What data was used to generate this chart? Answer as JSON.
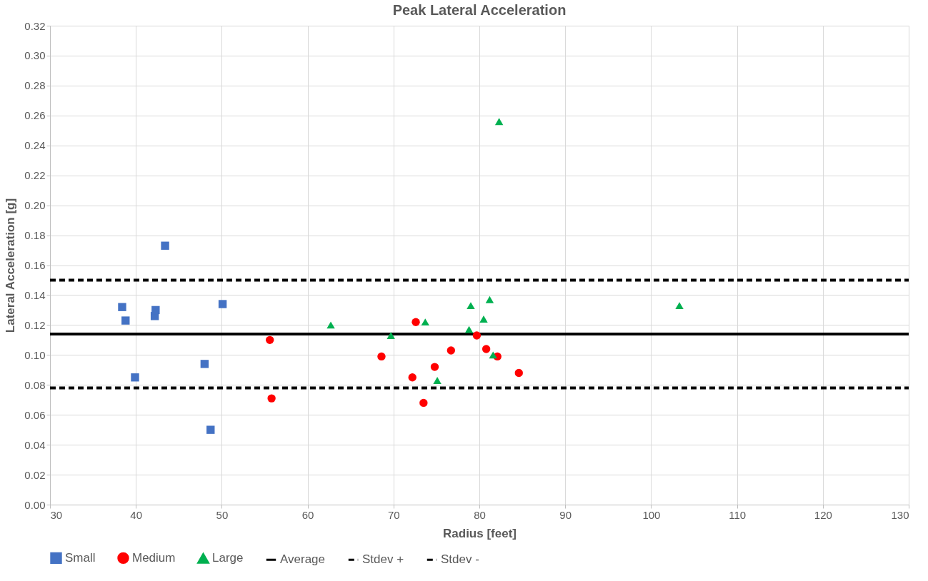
{
  "chart_data": {
    "type": "scatter",
    "title": "Peak Lateral Acceleration",
    "xlabel": "Radius [feet]",
    "ylabel": "Lateral Acceleration [g]",
    "xlim": [
      30,
      130
    ],
    "xticks": [
      30,
      40,
      50,
      60,
      70,
      80,
      90,
      100,
      110,
      120,
      130
    ],
    "ylim": [
      0,
      0.32
    ],
    "yticks": [
      {
        "value": 0,
        "label": "0.00"
      },
      {
        "value": 0.02,
        "label": "0.02"
      },
      {
        "value": 0.04,
        "label": "0.04"
      },
      {
        "value": 0.06,
        "label": "0.06"
      },
      {
        "value": 0.08,
        "label": "0.08"
      },
      {
        "value": 0.1,
        "label": "0.10"
      },
      {
        "value": 0.12,
        "label": "0.12"
      },
      {
        "value": 0.14,
        "label": "0.14"
      },
      {
        "value": 0.16,
        "label": "0.16"
      },
      {
        "value": 0.18,
        "label": "0.18"
      },
      {
        "value": 0.2,
        "label": "0.20"
      },
      {
        "value": 0.22,
        "label": "0.22"
      },
      {
        "value": 0.24,
        "label": "0.24"
      },
      {
        "value": 0.26,
        "label": "0.26"
      },
      {
        "value": 0.28,
        "label": "0.28"
      },
      {
        "value": 0.3,
        "label": "0.30"
      },
      {
        "value": 0.32,
        "label": "0.32"
      }
    ],
    "grid": true,
    "legend": "bottom",
    "series": [
      {
        "name": "Small",
        "marker": "square",
        "color": "#4472c4",
        "x": [
          38.4,
          38.8,
          39.9,
          42.2,
          42.3,
          43.4,
          48.0,
          48.7,
          50.1
        ],
        "values": [
          0.132,
          0.123,
          0.085,
          0.126,
          0.13,
          0.173,
          0.094,
          0.05,
          0.134
        ]
      },
      {
        "name": "Medium",
        "marker": "circle",
        "color": "#ff0000",
        "x": [
          55.6,
          55.8,
          68.6,
          72.2,
          72.6,
          73.5,
          74.8,
          76.7,
          79.7,
          80.8,
          82.1,
          84.6
        ],
        "values": [
          0.11,
          0.071,
          0.099,
          0.085,
          0.122,
          0.068,
          0.092,
          0.103,
          0.113,
          0.104,
          0.099,
          0.088
        ]
      },
      {
        "name": "Large",
        "marker": "triangle",
        "color": "#00b050",
        "x": [
          62.7,
          69.7,
          73.7,
          75.1,
          78.8,
          79.0,
          80.5,
          81.2,
          81.6,
          82.3,
          103.3
        ],
        "values": [
          0.12,
          0.113,
          0.122,
          0.083,
          0.117,
          0.133,
          0.124,
          0.137,
          0.1,
          0.256,
          0.133
        ]
      },
      {
        "name": "Average",
        "type": "line",
        "line_style": "solid",
        "color": "#000000",
        "x": [
          30,
          130
        ],
        "values": [
          0.114,
          0.114
        ]
      },
      {
        "name": "Stdev +",
        "type": "line",
        "line_style": "dashed",
        "color": "#000000",
        "x": [
          30,
          130
        ],
        "values": [
          0.15,
          0.15
        ]
      },
      {
        "name": "Stdev -",
        "type": "line",
        "line_style": "dashed",
        "color": "#000000",
        "x": [
          30,
          130
        ],
        "values": [
          0.078,
          0.078
        ]
      }
    ]
  }
}
